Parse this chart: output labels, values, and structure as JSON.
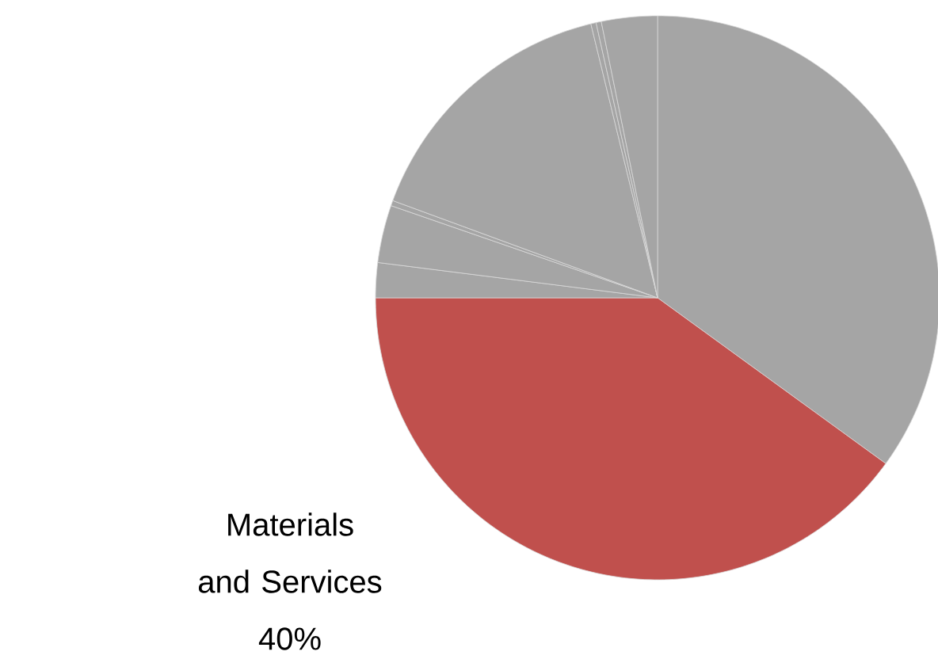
{
  "chart_data": {
    "type": "pie",
    "categories": [
      null,
      "Materials and Services",
      null,
      null,
      null,
      null,
      null,
      null,
      null
    ],
    "values": [
      35,
      40,
      2.0,
      3.3,
      0.3,
      15.6,
      0.3,
      0.3,
      3.2
    ],
    "colors": [
      "#a5a5a5",
      "#c0504d",
      "#a5a5a5",
      "#a5a5a5",
      "#a5a5a5",
      "#a5a5a5",
      "#a5a5a5",
      "#a5a5a5",
      "#a5a5a5"
    ],
    "value_labels": [
      null,
      "40%",
      null,
      null,
      null,
      null,
      null,
      null,
      null
    ]
  }
}
